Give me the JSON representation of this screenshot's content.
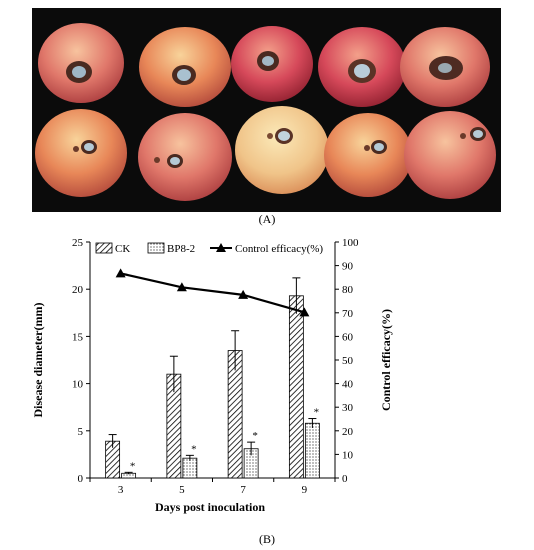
{
  "panel_a": {
    "label": "(A)"
  },
  "panel_b": {
    "label": "(B)"
  },
  "colors": {
    "photo_background": "#0b0b0b",
    "line_series": "#000000",
    "bar_outline": "#000000"
  },
  "chart_data": {
    "type": "bar",
    "xlabel": "Days post inoculation",
    "ylabel": "Disease diameter(mm)",
    "y2label": "Control efficacy(%)",
    "categories": [
      "3",
      "5",
      "7",
      "9"
    ],
    "ylim": [
      0,
      25
    ],
    "y_ticks": [
      0,
      5,
      10,
      15,
      20,
      25
    ],
    "y2lim": [
      0,
      100
    ],
    "y2_ticks": [
      0,
      10,
      20,
      30,
      40,
      50,
      60,
      70,
      80,
      90,
      100
    ],
    "legend_position": "top",
    "series": [
      {
        "name": "CK",
        "kind": "bar",
        "pattern": "diagonal-hatch",
        "values": [
          3.9,
          11.0,
          13.5,
          19.3
        ],
        "errors": [
          0.7,
          1.9,
          2.1,
          1.9
        ]
      },
      {
        "name": "BP8-2",
        "kind": "bar",
        "pattern": "dots",
        "values": [
          0.5,
          2.1,
          3.1,
          5.8
        ],
        "errors": [
          0.1,
          0.3,
          0.7,
          0.5
        ],
        "annotations": [
          "*",
          "*",
          "*",
          "*"
        ]
      },
      {
        "name": "Control efficacy(%)",
        "kind": "line",
        "axis": "y2",
        "marker": "triangle",
        "values": [
          86.7,
          80.8,
          77.6,
          70.2
        ]
      }
    ]
  }
}
